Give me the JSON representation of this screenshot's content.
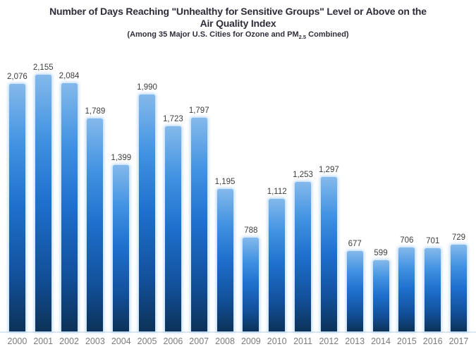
{
  "header": {
    "title_line1": "Number of Days Reaching \"Unhealthy for Sensitive Groups\" Level or Above on the",
    "title_line2": "Air Quality Index",
    "subtitle_prefix": "(Among 35 Major U.S. Cities for Ozone and PM",
    "subtitle_subscript": "2.5",
    "subtitle_suffix": " Combined)"
  },
  "chart_data": {
    "type": "bar",
    "title": "Number of Days Reaching \"Unhealthy for Sensitive Groups\" Level or Above on the Air Quality Index",
    "subtitle": "(Among 35 Major U.S. Cities for Ozone and PM2.5 Combined)",
    "categories": [
      "2000",
      "2001",
      "2002",
      "2003",
      "2004",
      "2005",
      "2006",
      "2007",
      "2008",
      "2009",
      "2010",
      "2011",
      "2012",
      "2013",
      "2014",
      "2015",
      "2016",
      "2017"
    ],
    "values": [
      2076,
      2155,
      2084,
      1789,
      1399,
      1990,
      1723,
      1797,
      1195,
      788,
      1112,
      1253,
      1297,
      677,
      599,
      706,
      701,
      729
    ],
    "value_labels": [
      "2,076",
      "2,155",
      "2,084",
      "1,789",
      "1,399",
      "1,990",
      "1,723",
      "1,797",
      "1,195",
      "788",
      "1,112",
      "1,253",
      "1,297",
      "677",
      "599",
      "706",
      "701",
      "729"
    ],
    "xlabel": "",
    "ylabel": "",
    "ylim": [
      0,
      2155
    ],
    "grid": false,
    "legend": false,
    "colors": {
      "bar_gradient_top": "#84b9eb",
      "bar_gradient_upper": "#4192e2",
      "bar_gradient_mid": "#1e6fcd",
      "bar_gradient_lower": "#12509a",
      "bar_gradient_bottom": "#0c3258",
      "bar_glow": "#7eb8eb",
      "baseline": "#dde8f1",
      "title_text": "#2e2e3b",
      "value_label_text": "#3d3d3d",
      "tick_label_text": "#7c7c7c"
    }
  }
}
